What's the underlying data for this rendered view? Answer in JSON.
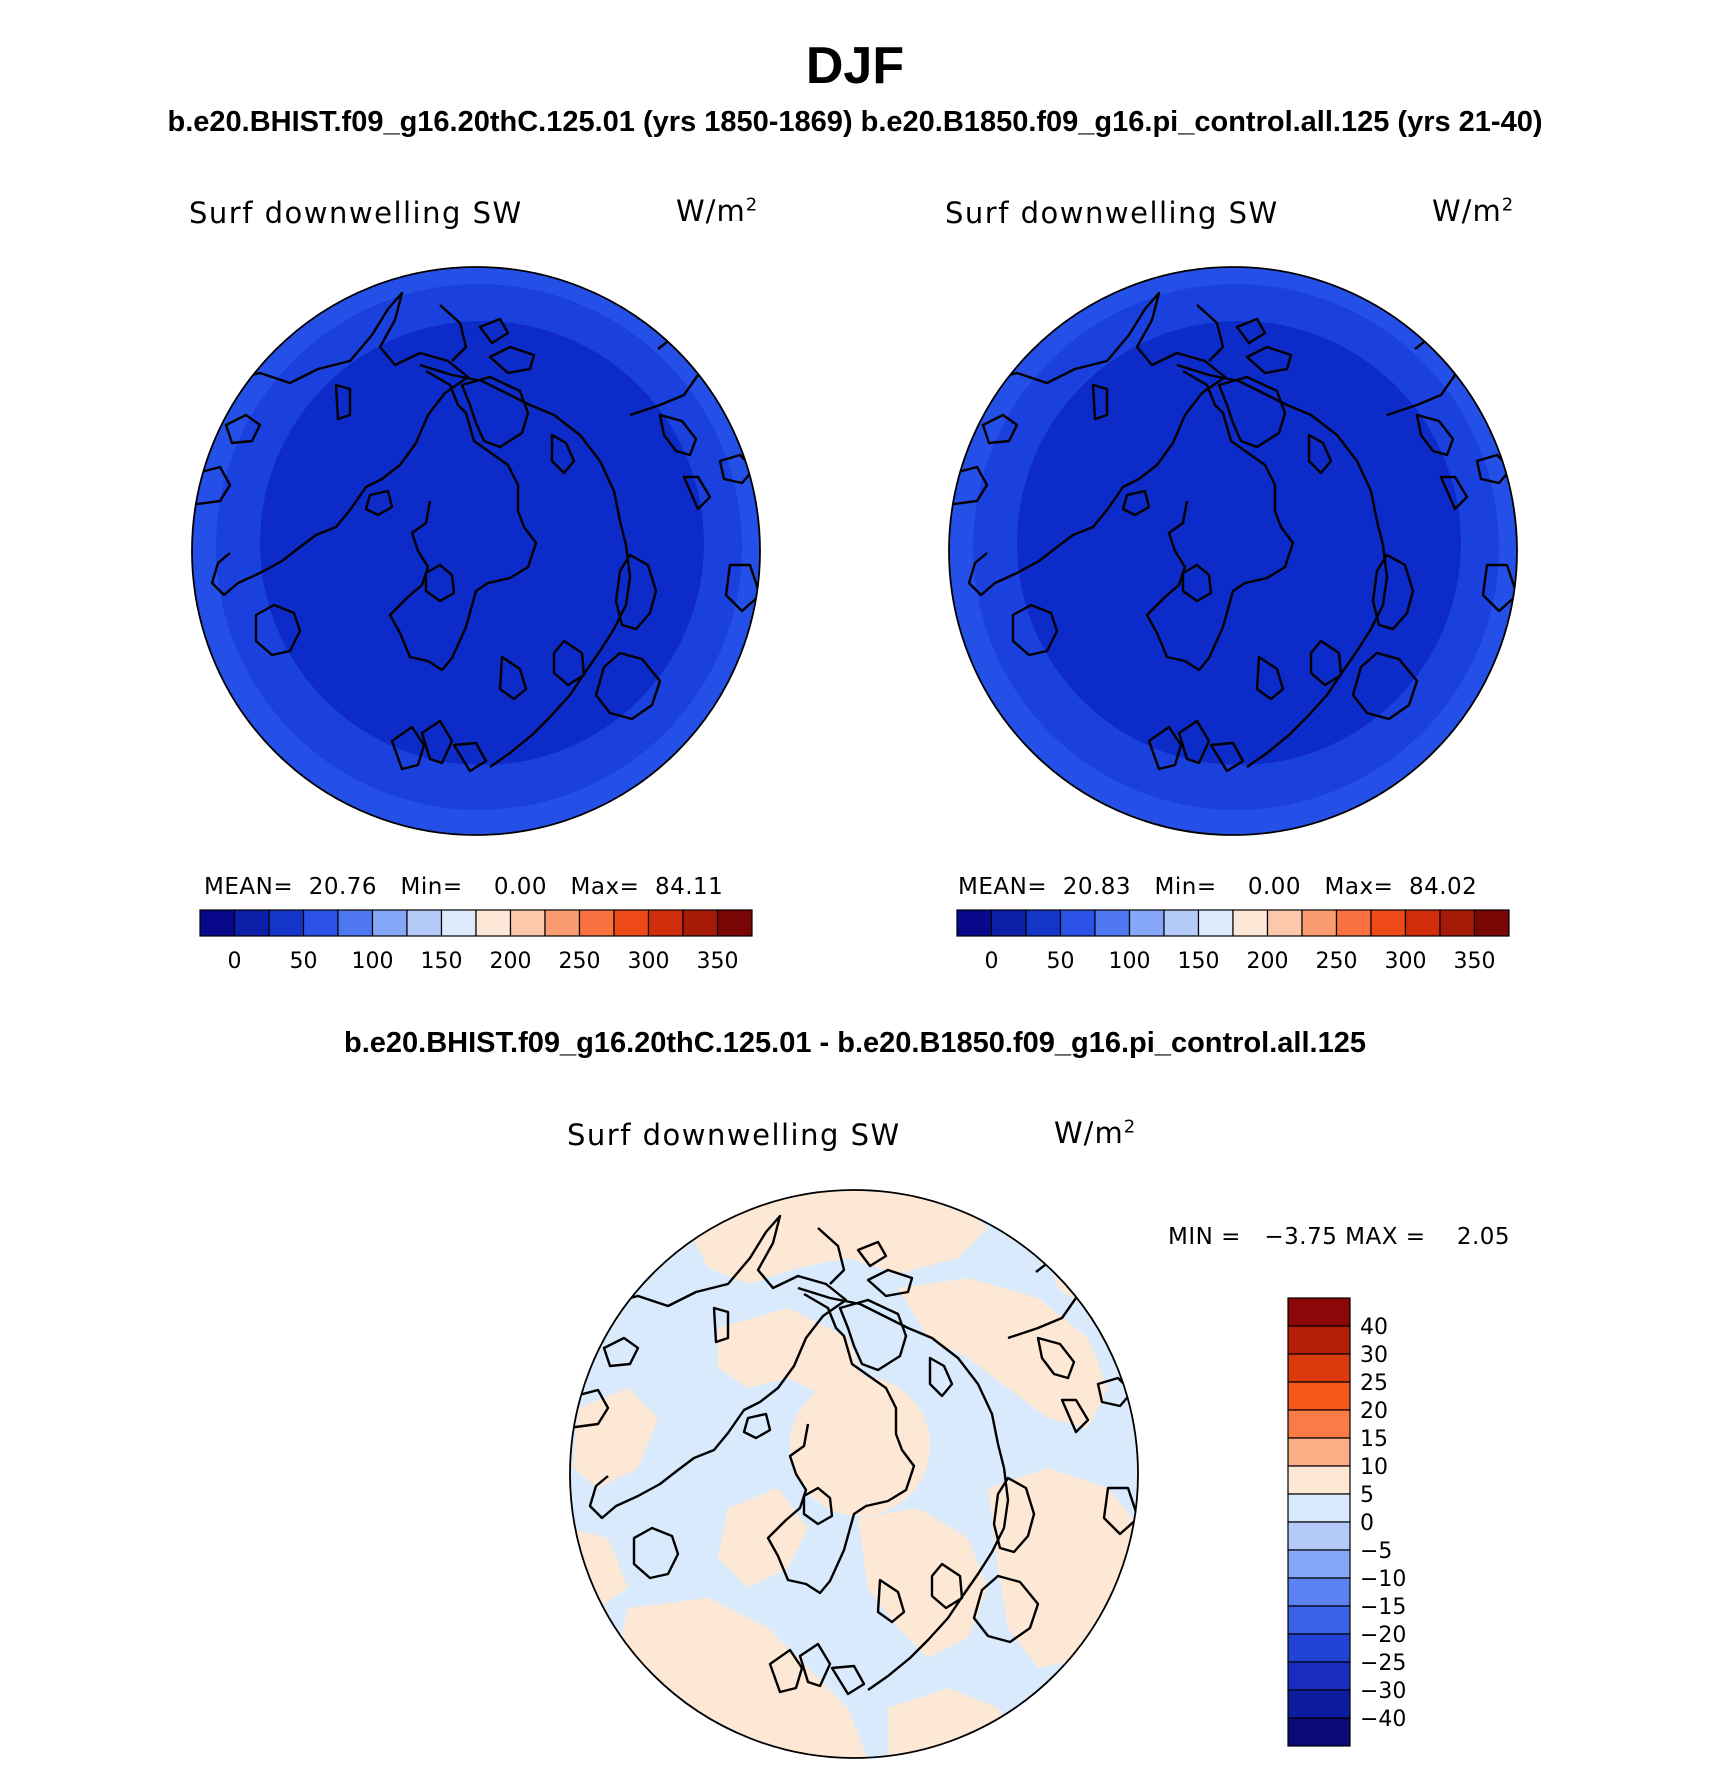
{
  "figure": {
    "title": "DJF",
    "subtitle": "b.e20.BHIST.f09_g16.20thC.125.01 (yrs 1850-1869)  b.e20.B1850.f09_g16.pi_control.all.125 (yrs 21-40)",
    "diff_subtitle": "b.e20.BHIST.f09_g16.20thC.125.01 - b.e20.B1850.f09_g16.pi_control.all.125"
  },
  "chart_data": [
    {
      "type": "heatmap",
      "projection": "north-polar-stereographic",
      "title": "Surf downwelling SW",
      "units_base": "W/m",
      "units_exp": "2",
      "stats": {
        "mean_label": "MEAN=",
        "mean": "20.76",
        "min_label": "Min=",
        "min": "0.00",
        "max_label": "Max=",
        "max": "84.11"
      },
      "colorbar": {
        "orientation": "horizontal",
        "colors": [
          "#08088a",
          "#0b1ea8",
          "#1535c8",
          "#2a52e6",
          "#4f78f0",
          "#86a6f8",
          "#b4cbfa",
          "#dcebfc",
          "#fde8d8",
          "#fcc7aa",
          "#fb9b70",
          "#f8713f",
          "#ee4a17",
          "#d22d0b",
          "#a81a08",
          "#7a0505"
        ],
        "tick_labels": [
          "0",
          "50",
          "100",
          "150",
          "200",
          "250",
          "300",
          "350"
        ]
      }
    },
    {
      "type": "heatmap",
      "projection": "north-polar-stereographic",
      "title": "Surf downwelling SW",
      "units_base": "W/m",
      "units_exp": "2",
      "stats": {
        "mean_label": "MEAN=",
        "mean": "20.83",
        "min_label": "Min=",
        "min": "0.00",
        "max_label": "Max=",
        "max": "84.02"
      },
      "colorbar": {
        "orientation": "horizontal",
        "colors": [
          "#08088a",
          "#0b1ea8",
          "#1535c8",
          "#2a52e6",
          "#4f78f0",
          "#86a6f8",
          "#b4cbfa",
          "#dcebfc",
          "#fde8d8",
          "#fcc7aa",
          "#fb9b70",
          "#f8713f",
          "#ee4a17",
          "#d22d0b",
          "#a81a08",
          "#7a0505"
        ],
        "tick_labels": [
          "0",
          "50",
          "100",
          "150",
          "200",
          "250",
          "300",
          "350"
        ]
      }
    },
    {
      "type": "heatmap",
      "projection": "north-polar-stereographic",
      "title": "Surf downwelling SW",
      "units_base": "W/m",
      "units_exp": "2",
      "stats": {
        "min_label": "MIN =",
        "min": "−3.75",
        "max_label": "MAX =",
        "max": "2.05"
      },
      "colorbar": {
        "orientation": "vertical",
        "colors_top_to_bottom": [
          "#8c0707",
          "#b51e08",
          "#db3a0f",
          "#f5561a",
          "#f97b45",
          "#fbad85",
          "#fde8d6",
          "#d8eafc",
          "#b4cbfa",
          "#86a6f8",
          "#5a82f0",
          "#3a62e8",
          "#2244d4",
          "#1a2dc0",
          "#0c1c9e",
          "#0a0a78"
        ],
        "tick_labels_top_to_bottom": [
          "40",
          "30",
          "25",
          "20",
          "15",
          "10",
          "5",
          "0",
          "−5",
          "−10",
          "−15",
          "−20",
          "−25",
          "−30",
          "−40"
        ]
      }
    }
  ]
}
